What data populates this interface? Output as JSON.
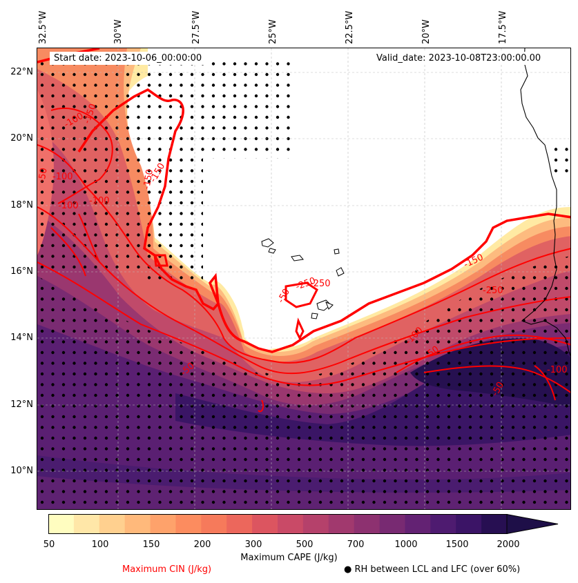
{
  "map": {
    "start_date": "Start date: 2023-10-06_00:00:00",
    "valid_date": "Valid_date: 2023-10-08T23:00:00.00",
    "longitude_labels": [
      "32.5°W",
      "30°W",
      "27.5°W",
      "25°W",
      "22.5°W",
      "20°W",
      "17.5°W"
    ],
    "latitude_labels": [
      "22°N",
      "20°N",
      "18°N",
      "16°N",
      "14°N",
      "12°N",
      "10°N"
    ],
    "cin_contour_labels": [
      "-100",
      "-150",
      "-50",
      "-100",
      "-150",
      "-100",
      "-100",
      "-250",
      "-250",
      "-50",
      "-150",
      "-150",
      "-100",
      "-250",
      "-50",
      "-50",
      "-100",
      "-50"
    ],
    "colors": {
      "cin_contour": "#ff0000",
      "cin_label": "#ff0000",
      "rh_dots": "#000000",
      "coastline": "#000000"
    }
  },
  "colorbar": {
    "label": "Maximum CAPE (J/kg)",
    "tick_labels": [
      "50",
      "100",
      "150",
      "200",
      "300",
      "500",
      "700",
      "1000",
      "1500",
      "2000"
    ],
    "colors": [
      "#fffdc0",
      "#ffe7a8",
      "#ffd08f",
      "#ffb97b",
      "#fea26b",
      "#fc8c5f",
      "#f67a5b",
      "#ec675c",
      "#dc5560",
      "#c94a67",
      "#b5416b",
      "#a1396e",
      "#8d3170",
      "#782a72",
      "#632273",
      "#4e1b70",
      "#3b1466",
      "#270f52"
    ]
  },
  "legend": {
    "cin_label": "Maximum CIN (J/kg)",
    "rh_label": "● RH between LCL and LFC (over 60%)"
  }
}
